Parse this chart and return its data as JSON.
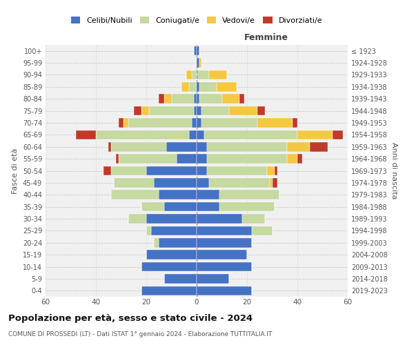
{
  "age_groups": [
    "0-4",
    "5-9",
    "10-14",
    "15-19",
    "20-24",
    "25-29",
    "30-34",
    "35-39",
    "40-44",
    "45-49",
    "50-54",
    "55-59",
    "60-64",
    "65-69",
    "70-74",
    "75-79",
    "80-84",
    "85-89",
    "90-94",
    "95-99",
    "100+"
  ],
  "birth_years": [
    "2019-2023",
    "2014-2018",
    "2009-2013",
    "2004-2008",
    "1999-2003",
    "1994-1998",
    "1989-1993",
    "1984-1988",
    "1979-1983",
    "1974-1978",
    "1969-1973",
    "1964-1968",
    "1959-1963",
    "1954-1958",
    "1949-1953",
    "1944-1948",
    "1939-1943",
    "1934-1938",
    "1929-1933",
    "1924-1928",
    "≤ 1923"
  ],
  "colors": {
    "celibi": "#4472c4",
    "coniugati": "#c5d9a0",
    "vedovi": "#f5c842",
    "divorziati": "#c0392b"
  },
  "males": {
    "celibi": [
      22,
      13,
      22,
      20,
      15,
      18,
      20,
      13,
      15,
      17,
      20,
      8,
      12,
      3,
      2,
      1,
      1,
      0,
      0,
      0,
      1
    ],
    "coniugati": [
      0,
      0,
      0,
      0,
      2,
      2,
      7,
      9,
      19,
      16,
      14,
      23,
      22,
      37,
      25,
      18,
      9,
      3,
      2,
      0,
      0
    ],
    "vedovi": [
      0,
      0,
      0,
      0,
      0,
      0,
      0,
      0,
      0,
      0,
      0,
      0,
      0,
      0,
      2,
      3,
      3,
      3,
      2,
      0,
      0
    ],
    "divorziati": [
      0,
      0,
      0,
      0,
      0,
      0,
      0,
      0,
      0,
      0,
      3,
      1,
      1,
      8,
      2,
      3,
      2,
      0,
      0,
      0,
      0
    ]
  },
  "females": {
    "celibi": [
      22,
      13,
      22,
      20,
      22,
      22,
      18,
      9,
      9,
      5,
      4,
      4,
      4,
      3,
      2,
      2,
      1,
      1,
      0,
      1,
      1
    ],
    "coniugati": [
      0,
      0,
      0,
      0,
      0,
      8,
      9,
      22,
      24,
      24,
      24,
      32,
      32,
      37,
      22,
      11,
      9,
      7,
      5,
      0,
      0
    ],
    "vedovi": [
      0,
      0,
      0,
      0,
      0,
      0,
      0,
      0,
      0,
      1,
      3,
      4,
      9,
      14,
      14,
      11,
      7,
      8,
      7,
      1,
      0
    ],
    "divorziati": [
      0,
      0,
      0,
      0,
      0,
      0,
      0,
      0,
      0,
      2,
      1,
      2,
      7,
      4,
      2,
      3,
      2,
      0,
      0,
      0,
      0
    ]
  },
  "xlim": 60,
  "title": "Popolazione per età, sesso e stato civile - 2024",
  "subtitle": "COMUNE DI PROSSEDI (LT) - Dati ISTAT 1° gennaio 2024 - Elaborazione TUTTITALIA.IT",
  "ylabel_left": "Fasce di età",
  "ylabel_right": "Anni di nascita",
  "xlabel_right": "Femmine",
  "legend_labels": [
    "Celibi/Nubili",
    "Coniugati/e",
    "Vedovi/e",
    "Divorziati/e"
  ],
  "bg_color": "#ffffff",
  "ax_bg_color": "#f0f0f0"
}
